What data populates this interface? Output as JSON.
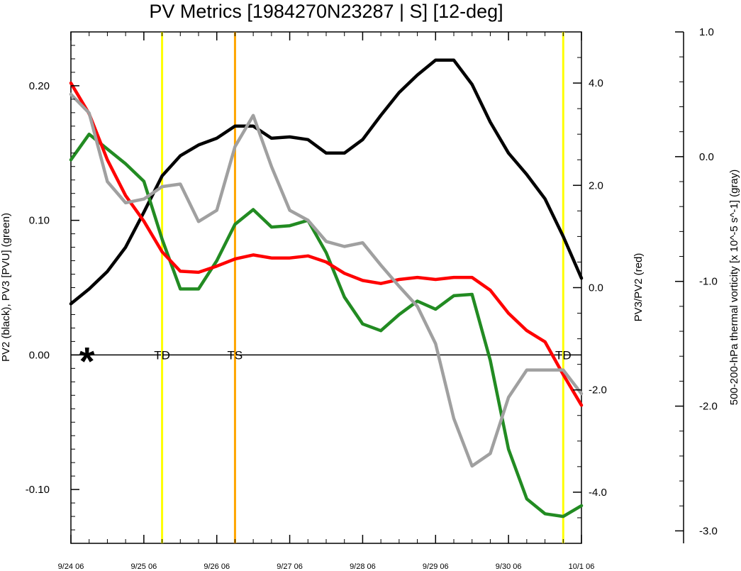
{
  "chart_data": {
    "type": "line",
    "title": "PV Metrics [1984270N23287 | S] [12-deg]",
    "ylabel_left": "PV2 (black), PV3 [PVU] (green)",
    "ylabel_mid": "PV3/PV2 (red)",
    "ylabel_right": "500-200-hPa thermal vorticity [x 10^-5 s^-1] (gray)",
    "x_labels": [
      "9/24 06",
      "9/25 06",
      "9/26 06",
      "9/27 06",
      "9/28 06",
      "9/29 06",
      "9/30 06",
      "10/1 06"
    ],
    "x_range_days": [
      0,
      7
    ],
    "y_left": {
      "range": [
        -0.14,
        0.24
      ],
      "ticks": [
        0.2,
        0.1,
        0.0,
        -0.1
      ],
      "tick_labels": [
        "0.20",
        "0.10",
        "0.00",
        "-0.10"
      ]
    },
    "y_mid": {
      "range": [
        -5.0,
        5.0
      ],
      "ticks": [
        4.0,
        2.0,
        0.0,
        -2.0,
        -4.0
      ],
      "tick_labels": [
        "4.0",
        "2.0",
        "0.0",
        "-2.0",
        "-4.0"
      ]
    },
    "y_right": {
      "range": [
        -3.1,
        1.0
      ],
      "ticks": [
        1.0,
        0.0,
        -1.0,
        -2.0,
        -3.0
      ],
      "tick_labels": [
        "1.0",
        "0.0",
        "-1.0",
        "-2.0",
        "-3.0"
      ]
    },
    "x": [
      0,
      0.25,
      0.5,
      0.75,
      1.0,
      1.25,
      1.5,
      1.75,
      2.0,
      2.25,
      2.5,
      2.75,
      3.0,
      3.25,
      3.5,
      3.75,
      4.0,
      4.25,
      4.5,
      4.75,
      5.0,
      5.25,
      5.5,
      5.75,
      6.0,
      6.25,
      6.5,
      6.75,
      7.0
    ],
    "series": [
      {
        "color": "#000000",
        "axis": "left",
        "values": [
          0.038,
          0.049,
          0.062,
          0.08,
          0.106,
          0.133,
          0.148,
          0.156,
          0.161,
          0.17,
          0.17,
          0.161,
          0.162,
          0.16,
          0.15,
          0.15,
          0.16,
          0.178,
          0.195,
          0.208,
          0.219,
          0.219,
          0.201,
          0.173,
          0.15,
          0.134,
          0.116,
          0.088,
          0.057
        ]
      },
      {
        "color": "#228b22",
        "axis": "left",
        "values": [
          0.145,
          0.164,
          0.153,
          0.142,
          0.129,
          0.086,
          0.049,
          0.049,
          0.07,
          0.097,
          0.108,
          0.095,
          0.096,
          0.1,
          0.076,
          0.043,
          0.023,
          0.018,
          0.03,
          0.04,
          0.034,
          0.044,
          0.045,
          -0.004,
          -0.07,
          -0.107,
          -0.118,
          -0.12,
          -0.112
        ]
      },
      {
        "color": "#ff0000",
        "axis": "mid",
        "values": [
          4.0,
          3.4,
          2.5,
          1.8,
          1.3,
          0.7,
          0.32,
          0.3,
          0.42,
          0.56,
          0.64,
          0.58,
          0.58,
          0.62,
          0.5,
          0.28,
          0.14,
          0.08,
          0.16,
          0.2,
          0.16,
          0.2,
          0.2,
          -0.05,
          -0.5,
          -0.84,
          -1.06,
          -1.7,
          -2.3
        ]
      },
      {
        "color": "#a0a0a0",
        "axis": "right",
        "values": [
          0.5,
          0.35,
          -0.2,
          -0.37,
          -0.34,
          -0.24,
          -0.22,
          -0.52,
          -0.43,
          0.08,
          0.33,
          -0.08,
          -0.43,
          -0.51,
          -0.68,
          -0.72,
          -0.69,
          -0.87,
          -1.04,
          -1.2,
          -1.5,
          -2.1,
          -2.48,
          -2.38,
          -1.93,
          -1.71,
          -1.71,
          -1.71,
          -1.9
        ]
      }
    ],
    "vlines": [
      {
        "x": 1.25,
        "color": "#ffff00",
        "label": "TD"
      },
      {
        "x": 2.25,
        "color": "#ffa500",
        "label": "TS"
      },
      {
        "x": 6.75,
        "color": "#ffff00",
        "label": "TD"
      }
    ],
    "marker": {
      "x": 0.22,
      "y": 0.0,
      "symbol": "*"
    }
  }
}
